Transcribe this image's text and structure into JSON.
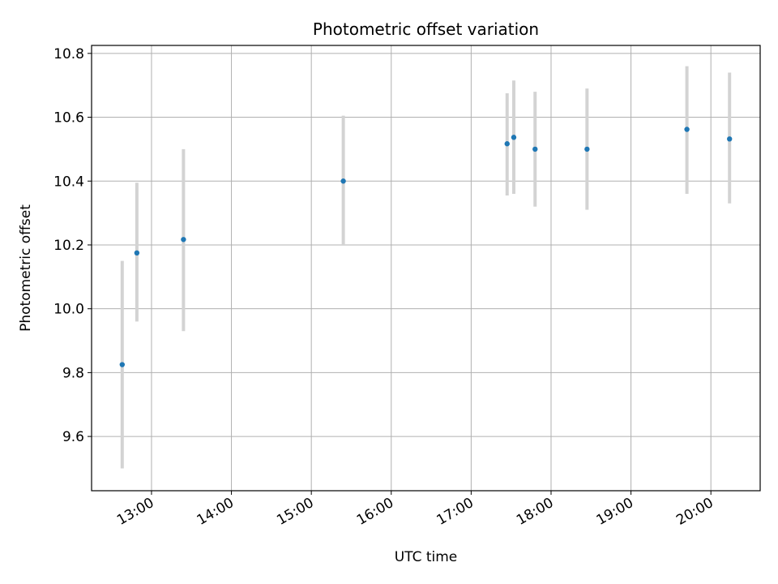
{
  "chart_data": {
    "type": "scatter",
    "title": "Photometric offset variation",
    "xlabel": "UTC time",
    "ylabel": "Photometric offset",
    "grid": true,
    "xlim": [
      "12:15",
      "20:37"
    ],
    "ylim": [
      9.43,
      10.825
    ],
    "x_ticks": [
      "13:00",
      "14:00",
      "15:00",
      "16:00",
      "17:00",
      "18:00",
      "19:00",
      "20:00"
    ],
    "y_ticks": [
      "9.6",
      "9.8",
      "10.0",
      "10.2",
      "10.4",
      "10.6",
      "10.8"
    ],
    "colors": {
      "point": "#1f77b4",
      "errorbar": "#d3d3d3",
      "grid": "#b0b0b0"
    },
    "series": [
      {
        "points": [
          {
            "x": "12:38",
            "y": 9.825,
            "err_low": 9.5,
            "err_high": 10.15
          },
          {
            "x": "12:49",
            "y": 10.175,
            "err_low": 9.96,
            "err_high": 10.395
          },
          {
            "x": "13:24",
            "y": 10.217,
            "err_low": 9.93,
            "err_high": 10.5
          },
          {
            "x": "15:24",
            "y": 10.4,
            "err_low": 10.2,
            "err_high": 10.605
          },
          {
            "x": "17:27",
            "y": 10.517,
            "err_low": 10.355,
            "err_high": 10.675
          },
          {
            "x": "17:32",
            "y": 10.537,
            "err_low": 10.36,
            "err_high": 10.715
          },
          {
            "x": "17:48",
            "y": 10.5,
            "err_low": 10.32,
            "err_high": 10.68
          },
          {
            "x": "18:27",
            "y": 10.5,
            "err_low": 10.31,
            "err_high": 10.69
          },
          {
            "x": "19:42",
            "y": 10.562,
            "err_low": 10.36,
            "err_high": 10.76
          },
          {
            "x": "20:14",
            "y": 10.532,
            "err_low": 10.33,
            "err_high": 10.74
          }
        ]
      }
    ]
  }
}
